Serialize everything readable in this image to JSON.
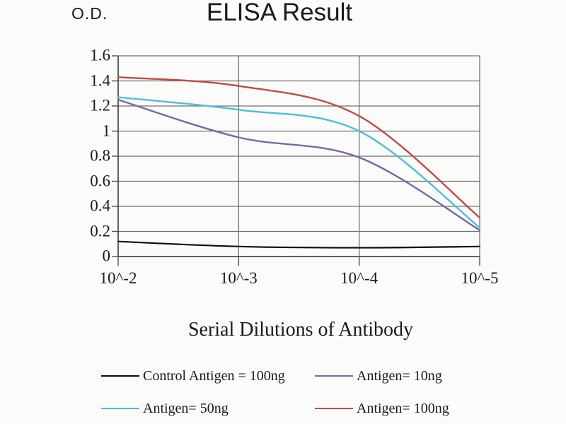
{
  "page": {
    "background": "#fbfbf9"
  },
  "chart": {
    "title": "ELISA Result",
    "y_axis_unit": "O.D.",
    "x_axis_title": "Serial Dilutions of Antibody"
  },
  "colors": {
    "grid": "#717171",
    "axis": "#4f4f4f",
    "text": "#1a1a1a",
    "background": "#fbfbf9"
  },
  "chart_data": {
    "type": "line",
    "title": "ELISA Result",
    "xlabel": "Serial Dilutions of Antibody",
    "ylabel": "O.D.",
    "categories": [
      "10^-2",
      "10^-3",
      "10^-4",
      "10^-5"
    ],
    "ylim": [
      0,
      1.6
    ],
    "y_ticks": [
      0,
      0.2,
      0.4,
      0.6,
      0.8,
      1,
      1.2,
      1.4,
      1.6
    ],
    "y_tick_labels": [
      "0",
      "0.2",
      "0.4",
      "0.6",
      "0.8",
      "1",
      "1.2",
      "1.4",
      "1.6"
    ],
    "grid": true,
    "smooth_lines": true,
    "legend_position": "bottom",
    "series": [
      {
        "name": "Control Antigen = 100ng",
        "color": "#0d0d0d",
        "values": [
          0.12,
          0.08,
          0.07,
          0.08
        ]
      },
      {
        "name": "Antigen= 10ng",
        "color": "#7b66a3",
        "values": [
          1.25,
          0.95,
          0.79,
          0.21
        ]
      },
      {
        "name": "Antigen= 50ng",
        "color": "#4abfdb",
        "values": [
          1.27,
          1.17,
          1.0,
          0.23
        ]
      },
      {
        "name": "Antigen= 100ng",
        "color": "#be4b48",
        "values": [
          1.43,
          1.36,
          1.12,
          0.31
        ]
      }
    ],
    "legend_rows": [
      [
        0,
        1
      ],
      [
        2,
        3
      ]
    ]
  }
}
